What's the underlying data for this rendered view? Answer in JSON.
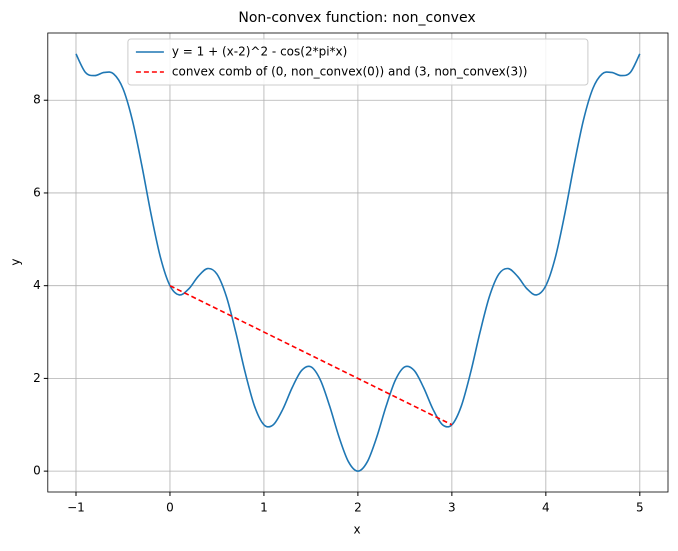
{
  "chart_data": {
    "type": "line",
    "title": "Non-convex function: non_convex",
    "x_label": "x",
    "y_label": "y",
    "series": [
      {
        "name": "y = 1 + (x-2)^2 - cos(2*pi*x)",
        "color": "#1f77b4",
        "linestyle": "solid",
        "x": [
          -1,
          -0.9,
          -0.8,
          -0.7,
          -0.6,
          -0.5,
          -0.4,
          -0.3,
          -0.2,
          -0.1,
          0,
          0.1,
          0.2,
          0.3,
          0.4,
          0.5,
          0.6,
          0.7,
          0.8,
          0.9,
          1,
          1.1,
          1.2,
          1.3,
          1.4,
          1.5,
          1.6,
          1.7,
          1.8,
          1.9,
          2,
          2.1,
          2.2,
          2.3,
          2.4,
          2.5,
          2.6,
          2.7,
          2.8,
          2.9,
          3,
          3.1,
          3.2,
          3.3,
          3.4,
          3.5,
          3.6,
          3.7,
          3.8,
          3.9,
          4,
          4.1,
          4.2,
          4.3,
          4.4,
          4.5,
          4.6,
          4.7,
          4.8,
          4.9,
          5
        ],
        "values": [
          9,
          8.601,
          8.531,
          8.599,
          8.569,
          8.25,
          7.569,
          6.599,
          5.531,
          4.601,
          4,
          3.801,
          3.931,
          4.199,
          4.369,
          4.25,
          3.769,
          2.999,
          2.131,
          1.401,
          1,
          1.001,
          1.331,
          1.799,
          2.169,
          2.25,
          1.969,
          1.399,
          0.731,
          0.201,
          0,
          0.201,
          0.731,
          1.399,
          1.969,
          2.25,
          2.169,
          1.799,
          1.331,
          1.001,
          1,
          1.401,
          2.131,
          2.999,
          3.769,
          4.25,
          4.369,
          4.199,
          3.931,
          3.801,
          4,
          4.601,
          5.531,
          6.599,
          7.569,
          8.25,
          8.569,
          8.599,
          8.531,
          8.601,
          9
        ]
      },
      {
        "name": "convex comb of (0, non_convex(0)) and (3, non_convex(3))",
        "color": "#ff0000",
        "linestyle": "dashed",
        "x": [
          0,
          3
        ],
        "values": [
          4,
          1
        ]
      }
    ],
    "xlim": [
      -1.3,
      5.3
    ],
    "ylim": [
      -0.45,
      9.45
    ],
    "xticks": [
      {
        "value": -1,
        "label": "−1"
      },
      0,
      1,
      2,
      3,
      4,
      5
    ],
    "yticks": [
      0,
      2,
      4,
      6,
      8
    ],
    "grid": true,
    "legend_loc": "upper center"
  }
}
